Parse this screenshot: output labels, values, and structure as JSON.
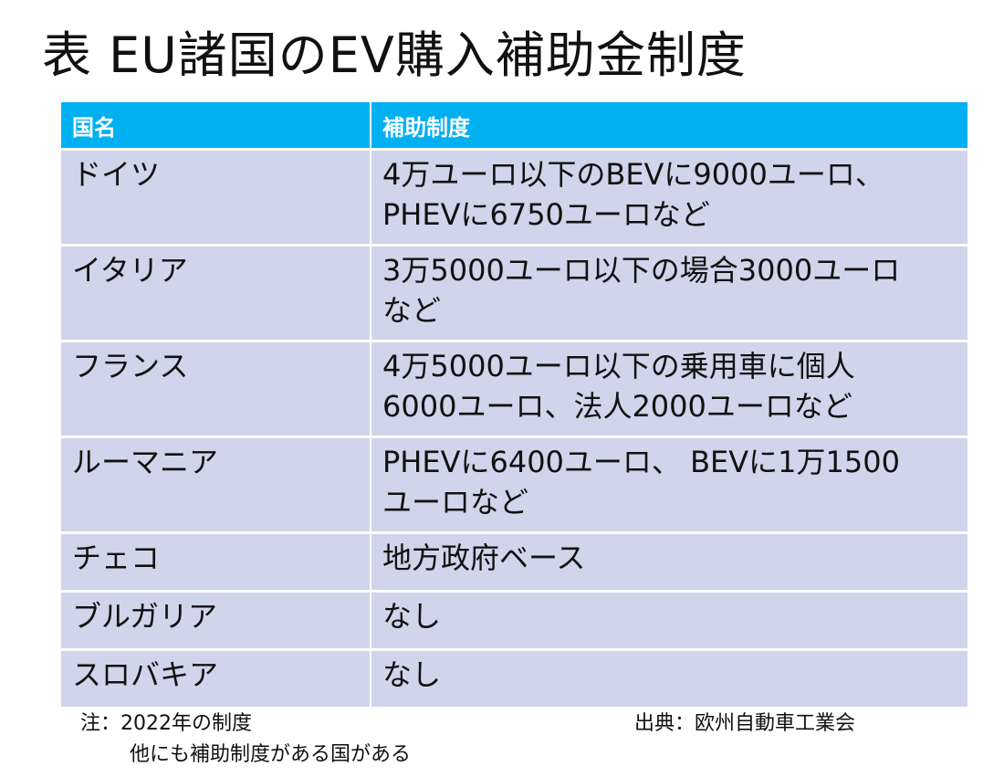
{
  "title": "表 EU諸国のEV購入補助金制度",
  "table": {
    "headers": [
      "国名",
      "補助制度"
    ],
    "rows": [
      {
        "country": "ドイツ",
        "subsidy": [
          "4万ユーロ以下のBEVに9000ユーロ、",
          "PHEVに6750ユーロなど"
        ]
      },
      {
        "country": "イタリア",
        "subsidy": [
          "3万5000ユーロ以下の場合3000ユーロ",
          "など"
        ]
      },
      {
        "country": "フランス",
        "subsidy": [
          "4万5000ユーロ以下の乗用車に個人",
          "6000ユーロ、法人2000ユーロなど"
        ]
      },
      {
        "country": "ルーマニア",
        "subsidy": [
          "PHEVに6400ユーロ、 BEVに1万1500",
          "ユーロなど"
        ]
      },
      {
        "country": "チェコ",
        "subsidy": [
          "地方政府ベース"
        ]
      },
      {
        "country": "ブルガリア",
        "subsidy": [
          "なし"
        ]
      },
      {
        "country": "スロバキア",
        "subsidy": [
          "なし"
        ]
      }
    ]
  },
  "note": {
    "line1": "注：2022年の制度",
    "line2": "他にも補助制度がある国がある"
  },
  "source": "出典：欧州自動車工業会",
  "colors": {
    "header_bg": "#00b0f0",
    "row_bg": "#cfd5ea"
  }
}
